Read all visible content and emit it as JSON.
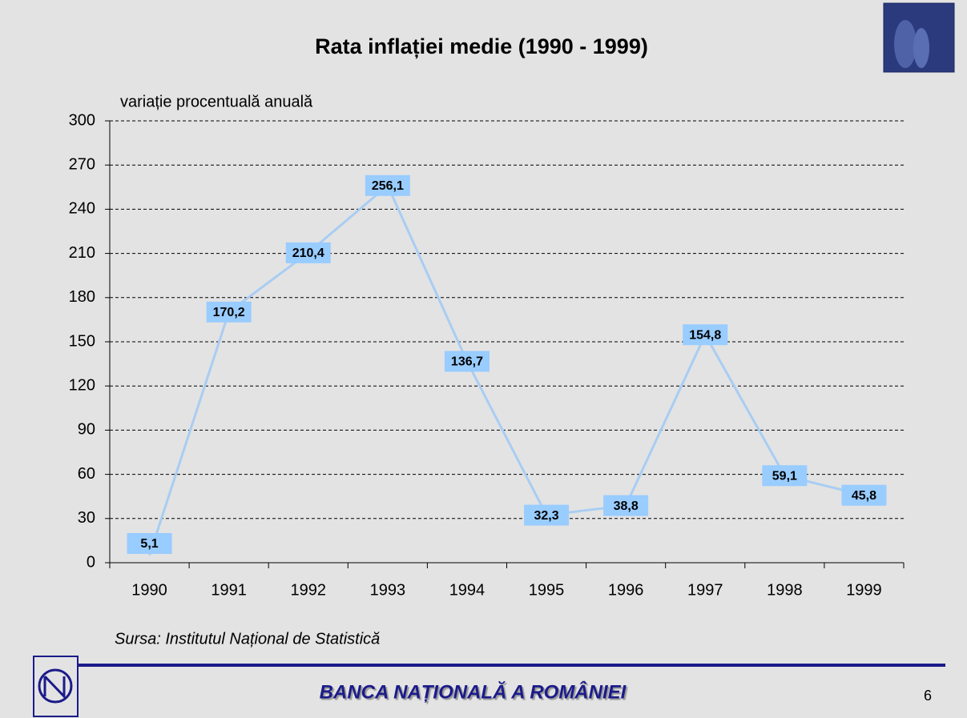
{
  "chart_data": {
    "type": "line",
    "title": "Rata inflației medie (1990 - 1999)",
    "y_axis_label": "variație procentuală anuală",
    "source": "Sursa: Institutul Național de Statistică",
    "categories": [
      "1990",
      "1991",
      "1992",
      "1993",
      "1994",
      "1995",
      "1996",
      "1997",
      "1998",
      "1999"
    ],
    "values": [
      5.1,
      170.2,
      210.4,
      256.1,
      136.7,
      32.3,
      38.8,
      154.8,
      59.1,
      45.8
    ],
    "value_labels": [
      "5,1",
      "170,2",
      "210,4",
      "256,1",
      "136,7",
      "32,3",
      "38,8",
      "154,8",
      "59,1",
      "45,8"
    ],
    "color": "#a9cdf3",
    "label_color": "#99ccff",
    "ylim": [
      0,
      300
    ],
    "yticks": [
      0,
      30,
      60,
      90,
      120,
      150,
      180,
      210,
      240,
      270,
      300
    ],
    "grid": true
  },
  "slide": {
    "footer": "BANCA NAȚIONALĂ A ROMÂNIEI",
    "page_number": "6"
  }
}
